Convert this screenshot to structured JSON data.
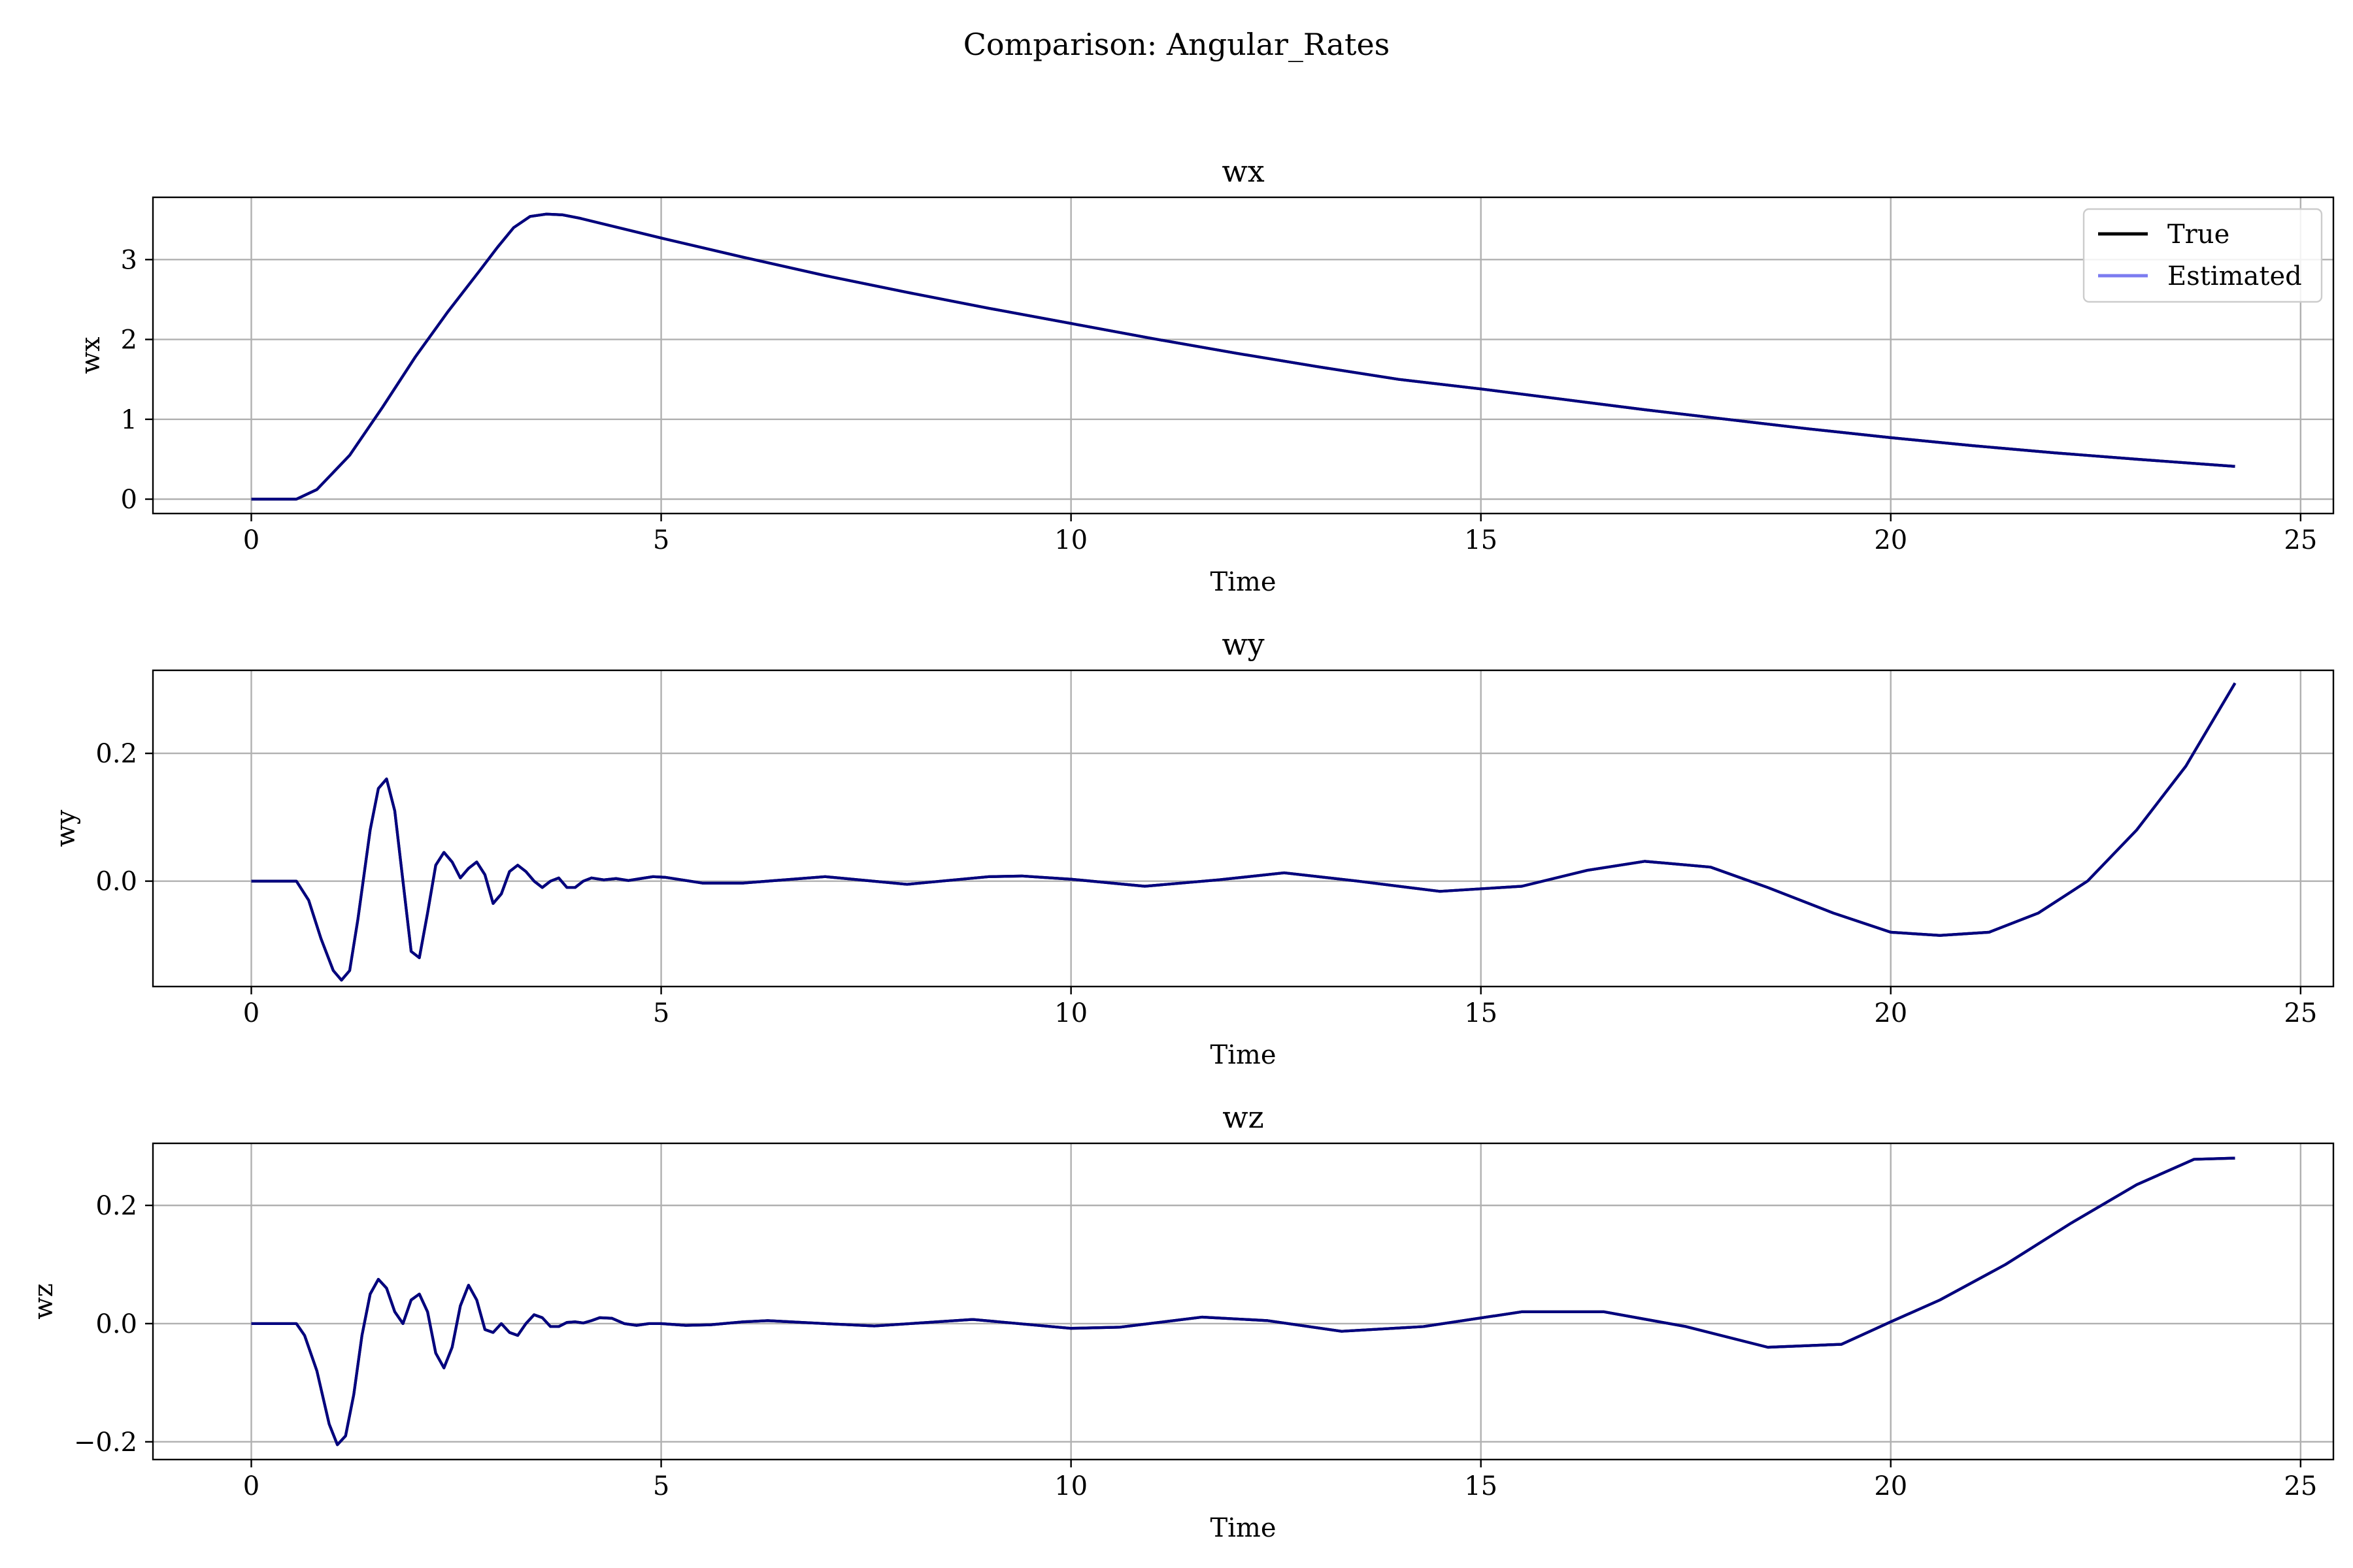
{
  "figure_title": "Comparison: Angular_Rates",
  "legend": {
    "placement": "upper right",
    "entries": [
      {
        "label": "True",
        "color": "#000000"
      },
      {
        "label": "Estimated",
        "color": "#7b7bf0"
      }
    ]
  },
  "colors": {
    "true_line": "#000000",
    "estimated_line": "#7b7bf0",
    "overlap_line": "#00007f",
    "grid": "#b0b0b0"
  },
  "chart_data": [
    {
      "type": "line",
      "title": "wx",
      "xlabel": "Time",
      "ylabel": "wx",
      "grid": true,
      "xlim": [
        -1.2,
        25.4
      ],
      "ylim": [
        -0.18,
        3.78
      ],
      "xticks": [
        0,
        5,
        10,
        15,
        20,
        25
      ],
      "xtick_labels": [
        "0",
        "5",
        "10",
        "15",
        "20",
        "25"
      ],
      "yticks": [
        0,
        1,
        2,
        3
      ],
      "ytick_labels": [
        "0",
        "1",
        "2",
        "3"
      ],
      "series": [
        {
          "name": "True",
          "x": [
            0,
            0.55,
            0.8,
            1.2,
            1.6,
            2.0,
            2.4,
            2.8,
            3.0,
            3.2,
            3.4,
            3.6,
            3.8,
            4.0,
            5,
            6,
            7,
            8,
            9,
            10,
            11,
            12,
            13,
            14,
            15,
            16,
            17,
            18,
            19,
            20,
            21,
            22,
            23,
            24.2
          ],
          "y": [
            0,
            0,
            0.12,
            0.55,
            1.15,
            1.78,
            2.35,
            2.88,
            3.15,
            3.4,
            3.54,
            3.57,
            3.56,
            3.52,
            3.27,
            3.03,
            2.8,
            2.59,
            2.39,
            2.2,
            2.01,
            1.83,
            1.66,
            1.5,
            1.38,
            1.25,
            1.12,
            1.0,
            0.88,
            0.77,
            0.67,
            0.58,
            0.5,
            0.41
          ]
        },
        {
          "name": "Estimated",
          "x": [
            0,
            0.55,
            0.8,
            1.2,
            1.6,
            2.0,
            2.4,
            2.8,
            3.0,
            3.2,
            3.4,
            3.6,
            3.8,
            4.0,
            5,
            6,
            7,
            8,
            9,
            10,
            11,
            12,
            13,
            14,
            15,
            16,
            17,
            18,
            19,
            20,
            21,
            22,
            23,
            24.2
          ],
          "y": [
            0,
            0,
            0.12,
            0.55,
            1.15,
            1.78,
            2.35,
            2.88,
            3.15,
            3.4,
            3.54,
            3.57,
            3.56,
            3.52,
            3.27,
            3.03,
            2.8,
            2.59,
            2.39,
            2.2,
            2.01,
            1.83,
            1.66,
            1.5,
            1.38,
            1.25,
            1.12,
            1.0,
            0.88,
            0.77,
            0.67,
            0.58,
            0.5,
            0.41
          ]
        }
      ]
    },
    {
      "type": "line",
      "title": "wy",
      "xlabel": "Time",
      "ylabel": "wy",
      "grid": true,
      "xlim": [
        -1.2,
        25.4
      ],
      "ylim": [
        -0.165,
        0.33
      ],
      "xticks": [
        0,
        5,
        10,
        15,
        20,
        25
      ],
      "xtick_labels": [
        "0",
        "5",
        "10",
        "15",
        "20",
        "25"
      ],
      "yticks": [
        0.0,
        0.2
      ],
      "ytick_labels": [
        "0.0",
        "0.2"
      ],
      "series": [
        {
          "name": "True",
          "x": [
            0,
            0.55,
            0.7,
            0.85,
            1.0,
            1.1,
            1.2,
            1.3,
            1.45,
            1.55,
            1.65,
            1.75,
            1.85,
            1.95,
            2.05,
            2.15,
            2.25,
            2.35,
            2.45,
            2.55,
            2.65,
            2.75,
            2.85,
            2.95,
            3.05,
            3.15,
            3.25,
            3.35,
            3.45,
            3.55,
            3.65,
            3.75,
            3.85,
            3.95,
            4.05,
            4.15,
            4.3,
            4.45,
            4.6,
            4.75,
            4.9,
            5.05,
            5.5,
            6,
            7,
            8,
            9,
            9.4,
            10,
            10.9,
            11.8,
            12.6,
            13.5,
            14.5,
            15.5,
            16.3,
            17.0,
            17.8,
            18.5,
            19.3,
            20.0,
            20.6,
            21.2,
            21.8,
            22.4,
            23.0,
            23.6,
            24.2
          ],
          "y": [
            0,
            0,
            -0.03,
            -0.09,
            -0.14,
            -0.155,
            -0.14,
            -0.06,
            0.08,
            0.145,
            0.16,
            0.11,
            0.0,
            -0.11,
            -0.12,
            -0.05,
            0.025,
            0.045,
            0.03,
            0.005,
            0.02,
            0.03,
            0.01,
            -0.035,
            -0.02,
            0.015,
            0.025,
            0.015,
            0.0,
            -0.01,
            0.0,
            0.005,
            -0.01,
            -0.01,
            0.0,
            0.005,
            0.002,
            0.004,
            0.001,
            0.004,
            0.007,
            0.006,
            -0.003,
            -0.003,
            0.007,
            -0.005,
            0.007,
            0.008,
            0.003,
            -0.008,
            0.002,
            0.013,
            0.0,
            -0.016,
            -0.008,
            0.017,
            0.031,
            0.022,
            -0.01,
            -0.05,
            -0.08,
            -0.085,
            -0.08,
            -0.05,
            0.0,
            0.08,
            0.18,
            0.31
          ]
        },
        {
          "name": "Estimated",
          "x": [
            0,
            0.55,
            0.7,
            0.85,
            1.0,
            1.1,
            1.2,
            1.3,
            1.45,
            1.55,
            1.65,
            1.75,
            1.85,
            1.95,
            2.05,
            2.15,
            2.25,
            2.35,
            2.45,
            2.55,
            2.65,
            2.75,
            2.85,
            2.95,
            3.05,
            3.15,
            3.25,
            3.35,
            3.45,
            3.55,
            3.65,
            3.75,
            3.85,
            3.95,
            4.05,
            4.15,
            4.3,
            4.45,
            4.6,
            4.75,
            4.9,
            5.05,
            5.5,
            6,
            7,
            8,
            9,
            9.4,
            10,
            10.9,
            11.8,
            12.6,
            13.5,
            14.5,
            15.5,
            16.3,
            17.0,
            17.8,
            18.5,
            19.3,
            20.0,
            20.6,
            21.2,
            21.8,
            22.4,
            23.0,
            23.6,
            24.2
          ],
          "y": [
            0,
            0,
            -0.03,
            -0.09,
            -0.14,
            -0.155,
            -0.14,
            -0.06,
            0.08,
            0.145,
            0.16,
            0.11,
            0.0,
            -0.11,
            -0.12,
            -0.05,
            0.025,
            0.045,
            0.03,
            0.005,
            0.02,
            0.03,
            0.01,
            -0.035,
            -0.02,
            0.015,
            0.025,
            0.015,
            0.0,
            -0.01,
            0.0,
            0.005,
            -0.01,
            -0.01,
            0.0,
            0.005,
            0.002,
            0.004,
            0.001,
            0.004,
            0.007,
            0.006,
            -0.003,
            -0.003,
            0.007,
            -0.005,
            0.007,
            0.008,
            0.003,
            -0.008,
            0.002,
            0.013,
            0.0,
            -0.016,
            -0.008,
            0.017,
            0.031,
            0.022,
            -0.01,
            -0.05,
            -0.08,
            -0.085,
            -0.08,
            -0.05,
            0.0,
            0.08,
            0.18,
            0.31
          ]
        }
      ]
    },
    {
      "type": "line",
      "title": "wz",
      "xlabel": "Time",
      "ylabel": "wz",
      "grid": true,
      "xlim": [
        -1.2,
        25.4
      ],
      "ylim": [
        -0.23,
        0.305
      ],
      "xticks": [
        0,
        5,
        10,
        15,
        20,
        25
      ],
      "xtick_labels": [
        "0",
        "5",
        "10",
        "15",
        "20",
        "25"
      ],
      "yticks": [
        -0.2,
        0.0,
        0.2
      ],
      "ytick_labels": [
        "−0.2",
        "0.0",
        "0.2"
      ],
      "series": [
        {
          "name": "True",
          "x": [
            0,
            0.55,
            0.65,
            0.8,
            0.95,
            1.05,
            1.15,
            1.25,
            1.35,
            1.45,
            1.55,
            1.65,
            1.75,
            1.85,
            1.95,
            2.05,
            2.15,
            2.25,
            2.35,
            2.45,
            2.55,
            2.65,
            2.75,
            2.85,
            2.95,
            3.05,
            3.15,
            3.25,
            3.35,
            3.45,
            3.55,
            3.65,
            3.75,
            3.85,
            3.95,
            4.05,
            4.15,
            4.25,
            4.4,
            4.55,
            4.7,
            4.85,
            5.0,
            5.3,
            5.6,
            6,
            6.3,
            7,
            7.6,
            8.8,
            10,
            10.6,
            11.6,
            12.4,
            13.3,
            14.3,
            15.5,
            16.5,
            17.5,
            18.5,
            19.4,
            20.0,
            20.6,
            21.4,
            22.2,
            23.0,
            23.7,
            24.2
          ],
          "y": [
            0,
            0,
            -0.02,
            -0.08,
            -0.17,
            -0.205,
            -0.19,
            -0.12,
            -0.02,
            0.05,
            0.075,
            0.06,
            0.02,
            0.0,
            0.04,
            0.05,
            0.02,
            -0.05,
            -0.075,
            -0.04,
            0.03,
            0.065,
            0.04,
            -0.01,
            -0.015,
            0.0,
            -0.015,
            -0.02,
            0.0,
            0.015,
            0.01,
            -0.005,
            -0.005,
            0.002,
            0.003,
            0.001,
            0.005,
            0.01,
            0.009,
            0.0,
            -0.003,
            0.0,
            0.0,
            -0.003,
            -0.002,
            0.003,
            0.005,
            0.0,
            -0.004,
            0.007,
            -0.008,
            -0.006,
            0.011,
            0.005,
            -0.013,
            -0.005,
            0.02,
            0.02,
            -0.005,
            -0.04,
            -0.035,
            0.003,
            0.04,
            0.1,
            0.17,
            0.235,
            0.278,
            0.28
          ]
        },
        {
          "name": "Estimated",
          "x": [
            0,
            0.55,
            0.65,
            0.8,
            0.95,
            1.05,
            1.15,
            1.25,
            1.35,
            1.45,
            1.55,
            1.65,
            1.75,
            1.85,
            1.95,
            2.05,
            2.15,
            2.25,
            2.35,
            2.45,
            2.55,
            2.65,
            2.75,
            2.85,
            2.95,
            3.05,
            3.15,
            3.25,
            3.35,
            3.45,
            3.55,
            3.65,
            3.75,
            3.85,
            3.95,
            4.05,
            4.15,
            4.25,
            4.4,
            4.55,
            4.7,
            4.85,
            5.0,
            5.3,
            5.6,
            6,
            6.3,
            7,
            7.6,
            8.8,
            10,
            10.6,
            11.6,
            12.4,
            13.3,
            14.3,
            15.5,
            16.5,
            17.5,
            18.5,
            19.4,
            20.0,
            20.6,
            21.4,
            22.2,
            23.0,
            23.7,
            24.2
          ],
          "y": [
            0,
            0,
            -0.02,
            -0.08,
            -0.17,
            -0.205,
            -0.19,
            -0.12,
            -0.02,
            0.05,
            0.075,
            0.06,
            0.02,
            0.0,
            0.04,
            0.05,
            0.02,
            -0.05,
            -0.075,
            -0.04,
            0.03,
            0.065,
            0.04,
            -0.01,
            -0.015,
            0.0,
            -0.015,
            -0.02,
            0.0,
            0.015,
            0.01,
            -0.005,
            -0.005,
            0.002,
            0.003,
            0.001,
            0.005,
            0.01,
            0.009,
            0.0,
            -0.003,
            0.0,
            0.0,
            -0.003,
            -0.002,
            0.003,
            0.005,
            0.0,
            -0.004,
            0.007,
            -0.008,
            -0.006,
            0.011,
            0.005,
            -0.013,
            -0.005,
            0.02,
            0.02,
            -0.005,
            -0.04,
            -0.035,
            0.003,
            0.04,
            0.1,
            0.17,
            0.235,
            0.278,
            0.28
          ]
        }
      ]
    }
  ]
}
